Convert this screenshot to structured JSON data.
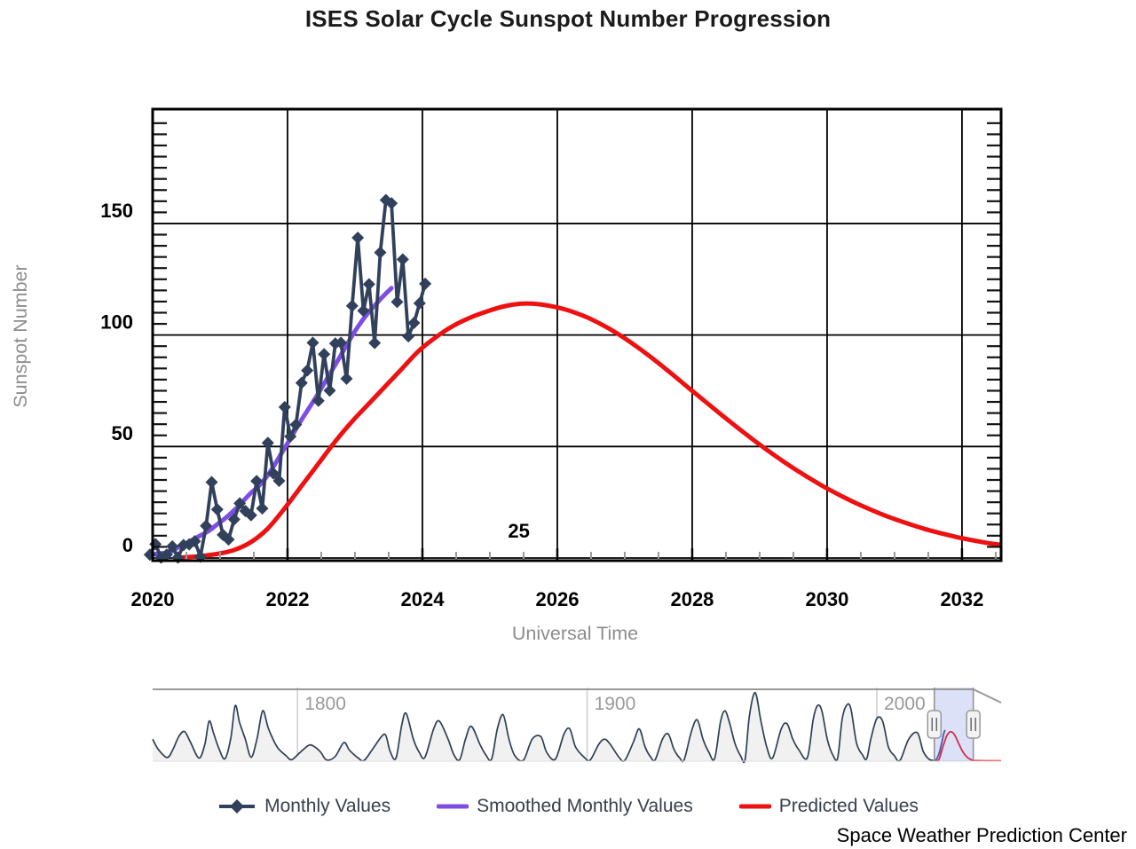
{
  "chart_data": {
    "type": "line",
    "title": "ISES Solar Cycle Sunspot Number Progression",
    "xlabel": "Universal Time",
    "ylabel": "Sunspot Number",
    "credit": "Space Weather Prediction Center",
    "grid": true,
    "legend_position": "bottom",
    "cycle_annotation": {
      "text": "25",
      "x": 2025.43,
      "y": 12
    },
    "x_axis": {
      "min": 2020,
      "max": 2032.58,
      "ticks": [
        2020,
        2022,
        2024,
        2026,
        2028,
        2030,
        2032
      ],
      "minor_step": 0.5
    },
    "y_axis": {
      "min": 0,
      "max": 200,
      "ticks": [
        0,
        50,
        100,
        150
      ],
      "minor_step": 5
    },
    "colors": {
      "monthly": "#31405b",
      "smoothed": "#7e4ee4",
      "predicted": "#ee1111",
      "nav_line": "#2e3f54",
      "nav_fill": "#f1f1f1",
      "nav_blue": "#3a44a8",
      "selection_fill": "#7688de",
      "selection_opacity": 0.25,
      "axis_title": "#8c8c8c",
      "nav_label": "#999999"
    },
    "series": [
      {
        "name": "Monthly Values",
        "marker": "diamond",
        "start_x": 2019.9583,
        "x_step": 0.0833333,
        "values": [
          1.5,
          6.2,
          0.2,
          1.5,
          5.2,
          0.2,
          5.8,
          6.1,
          7.5,
          0.6,
          14.4,
          34.0,
          21.8,
          10.4,
          8.3,
          17.3,
          24.5,
          21.1,
          19.2,
          34.5,
          22.2,
          51.6,
          37.9,
          34.6,
          67.7,
          54.5,
          59.8,
          78.5,
          84.1,
          96.5,
          70.5,
          91.4,
          75.1,
          96.2,
          96.5,
          80.4,
          113.1,
          143.6,
          110.9,
          122.8,
          96.4,
          137.0,
          160.5,
          159.1,
          114.8,
          133.9,
          99.4,
          105.4,
          114.2,
          123.0
        ]
      },
      {
        "name": "Smoothed Monthly Values",
        "marker": "none",
        "start_x": 2020.0417,
        "x_step": 0.0833333,
        "values": [
          1.8,
          2.1,
          2.4,
          3.1,
          4.7,
          5.9,
          7.3,
          8.7,
          10.1,
          11.4,
          13.1,
          15.1,
          17.0,
          19.1,
          21.4,
          23.8,
          26.6,
          29.2,
          31.4,
          34.0,
          37.2,
          41.0,
          45.2,
          49.3,
          53.6,
          57.8,
          62.0,
          66.0,
          69.9,
          73.9,
          78.2,
          82.5,
          86.7,
          91.0,
          95.4,
          99.7,
          103.6,
          107.2,
          110.4,
          113.2,
          116.0,
          118.6,
          121.0
        ]
      },
      {
        "name": "Predicted Values",
        "marker": "none",
        "start_x": 2020.45,
        "x_step": 0.25,
        "values": [
          0.3,
          0.8,
          1.8,
          3.5,
          7,
          13,
          22,
          32,
          42,
          52,
          61,
          69,
          77,
          85,
          93,
          99,
          104,
          107.7,
          110.5,
          112.8,
          114,
          113.9,
          112.7,
          110.7,
          107.8,
          104,
          99.5,
          94.3,
          88.6,
          82.5,
          76.2,
          70,
          63.8,
          57.8,
          52,
          46.5,
          41.3,
          36.5,
          32,
          28,
          24.3,
          21,
          18,
          15.4,
          13,
          11,
          9.2,
          7.7,
          6.4,
          5.5
        ]
      }
    ],
    "navigator": {
      "min": 1750,
      "max": 2042.9,
      "y_max": 285,
      "x_ticks": [
        1800,
        1900,
        2000
      ],
      "selection": [
        2019.85,
        2033.3
      ],
      "predicted_extension": [
        [
          2033.3,
          2.5
        ],
        [
          2036,
          1.8
        ],
        [
          2042.9,
          1.5
        ]
      ],
      "historical_monthly": [
        [
          1750,
          85
        ],
        [
          1752,
          45
        ],
        [
          1755,
          14
        ],
        [
          1757,
          45
        ],
        [
          1759,
          95
        ],
        [
          1761,
          115
        ],
        [
          1763,
          75
        ],
        [
          1766,
          12
        ],
        [
          1768,
          65
        ],
        [
          1769.5,
          155
        ],
        [
          1771,
          110
        ],
        [
          1773,
          45
        ],
        [
          1775,
          10
        ],
        [
          1777,
          90
        ],
        [
          1778.5,
          215
        ],
        [
          1780,
          150
        ],
        [
          1782,
          85
        ],
        [
          1784,
          15
        ],
        [
          1786,
          85
        ],
        [
          1788,
          195
        ],
        [
          1790,
          125
        ],
        [
          1793,
          55
        ],
        [
          1796,
          22
        ],
        [
          1798,
          6
        ],
        [
          1801,
          35
        ],
        [
          1804,
          62
        ],
        [
          1806,
          55
        ],
        [
          1808,
          35
        ],
        [
          1810,
          5
        ],
        [
          1813,
          18
        ],
        [
          1816,
          72
        ],
        [
          1818,
          42
        ],
        [
          1821,
          12
        ],
        [
          1823,
          3
        ],
        [
          1826,
          48
        ],
        [
          1829,
          95
        ],
        [
          1830.5,
          100
        ],
        [
          1832,
          38
        ],
        [
          1834,
          12
        ],
        [
          1836,
          140
        ],
        [
          1837.5,
          185
        ],
        [
          1840,
          85
        ],
        [
          1842,
          35
        ],
        [
          1844,
          15
        ],
        [
          1847,
          125
        ],
        [
          1849,
          155
        ],
        [
          1852,
          85
        ],
        [
          1854,
          25
        ],
        [
          1856,
          6
        ],
        [
          1858,
          85
        ],
        [
          1860,
          135
        ],
        [
          1863,
          65
        ],
        [
          1865,
          25
        ],
        [
          1867,
          8
        ],
        [
          1869,
          125
        ],
        [
          1871,
          180
        ],
        [
          1873,
          85
        ],
        [
          1875,
          22
        ],
        [
          1878,
          4
        ],
        [
          1881,
          85
        ],
        [
          1884,
          95
        ],
        [
          1886,
          35
        ],
        [
          1889,
          8
        ],
        [
          1892,
          105
        ],
        [
          1894,
          125
        ],
        [
          1896,
          55
        ],
        [
          1899,
          15
        ],
        [
          1901,
          4
        ],
        [
          1904,
          65
        ],
        [
          1906,
          85
        ],
        [
          1908,
          65
        ],
        [
          1911,
          15
        ],
        [
          1913,
          3
        ],
        [
          1916,
          75
        ],
        [
          1918,
          125
        ],
        [
          1920,
          55
        ],
        [
          1922,
          15
        ],
        [
          1923.5,
          6
        ],
        [
          1926,
          85
        ],
        [
          1928,
          105
        ],
        [
          1930,
          45
        ],
        [
          1932,
          12
        ],
        [
          1933.5,
          6
        ],
        [
          1936,
          115
        ],
        [
          1938,
          160
        ],
        [
          1940,
          85
        ],
        [
          1942,
          35
        ],
        [
          1944,
          10
        ],
        [
          1946,
          150
        ],
        [
          1947.5,
          195
        ],
        [
          1949,
          155
        ],
        [
          1951,
          70
        ],
        [
          1953,
          20
        ],
        [
          1954.5,
          6
        ],
        [
          1956,
          175
        ],
        [
          1958,
          265
        ],
        [
          1960,
          155
        ],
        [
          1962,
          55
        ],
        [
          1964,
          12
        ],
        [
          1967,
          125
        ],
        [
          1969,
          145
        ],
        [
          1971,
          85
        ],
        [
          1973,
          45
        ],
        [
          1976,
          13
        ],
        [
          1978,
          160
        ],
        [
          1979.5,
          215
        ],
        [
          1981,
          195
        ],
        [
          1983,
          80
        ],
        [
          1985,
          20
        ],
        [
          1986.5,
          13
        ],
        [
          1988,
          160
        ],
        [
          1989.5,
          215
        ],
        [
          1991,
          205
        ],
        [
          1993,
          70
        ],
        [
          1995,
          25
        ],
        [
          1996.5,
          10
        ],
        [
          1998,
          90
        ],
        [
          2000,
          165
        ],
        [
          2002,
          155
        ],
        [
          2004,
          55
        ],
        [
          2006,
          22
        ],
        [
          2008,
          3
        ],
        [
          2011,
          85
        ],
        [
          2014,
          110
        ],
        [
          2016,
          38
        ],
        [
          2018,
          8
        ],
        [
          2019.8,
          2
        ]
      ]
    }
  }
}
